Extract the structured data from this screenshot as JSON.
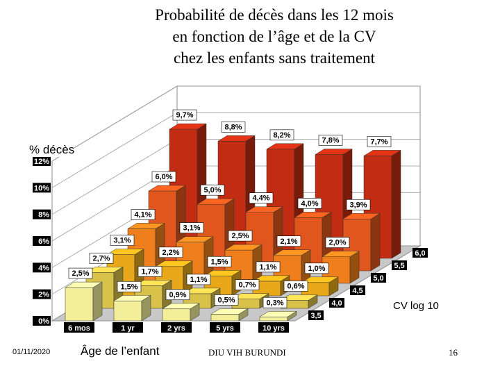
{
  "slide": {
    "title_lines": [
      "Probabilité de décès dans les 12 mois",
      "en fonction de l’âge et de la CV",
      "chez les enfants sans traitement"
    ],
    "footer_date": "01/11/2020",
    "footer_center": "DIU VIH BURUNDI",
    "page_number": "16"
  },
  "chart_data": {
    "type": "bar",
    "subtype": "3d-grouped",
    "ylabel": "% décès",
    "xlabel": "Âge de l’enfant",
    "zlabel": "CV log 10",
    "ylim": [
      0,
      12
    ],
    "y_ticks": [
      "0%",
      "2%",
      "4%",
      "6%",
      "8%",
      "10%",
      "12%"
    ],
    "categories": [
      "6 mos",
      "1 yr",
      "2 yrs",
      "5 yrs",
      "10 yrs"
    ],
    "series": [
      {
        "name": "3,5",
        "color": "#f2ee9a",
        "values": [
          2.5,
          1.5,
          0.9,
          0.5,
          0.3
        ],
        "labels": [
          "2,5%",
          "1,5%",
          "0,9%",
          "0,5%",
          "0,3%"
        ]
      },
      {
        "name": "4,0",
        "color": "#d9c24a",
        "values": [
          2.7,
          1.7,
          1.1,
          0.7,
          0.6
        ],
        "labels": [
          "2,7%",
          "1,7%",
          "1,1%",
          "0,7%",
          "0,6%"
        ]
      },
      {
        "name": "4,5",
        "color": "#e8a81a",
        "values": [
          3.1,
          2.2,
          1.5,
          1.1,
          1.0
        ],
        "labels": [
          "3,1%",
          "2,2%",
          "1,5%",
          "1,1%",
          "1,0%"
        ]
      },
      {
        "name": "5,0",
        "color": "#ee7f1c",
        "values": [
          4.1,
          3.1,
          2.5,
          2.1,
          2.0
        ],
        "labels": [
          "4,1%",
          "3,1%",
          "2,5%",
          "2,1%",
          "2,0%"
        ]
      },
      {
        "name": "5,5",
        "color": "#e0561c",
        "values": [
          6.0,
          5.0,
          4.4,
          4.0,
          3.9
        ],
        "labels": [
          "6,0%",
          "5,0%",
          "4,4%",
          "4,0%",
          "3,9%"
        ]
      },
      {
        "name": "6,0",
        "color": "#c22c12",
        "values": [
          9.7,
          8.8,
          8.2,
          7.8,
          7.7
        ],
        "labels": [
          "9,7%",
          "8,8%",
          "8,2%",
          "7,8%",
          "7,7%"
        ]
      }
    ]
  }
}
